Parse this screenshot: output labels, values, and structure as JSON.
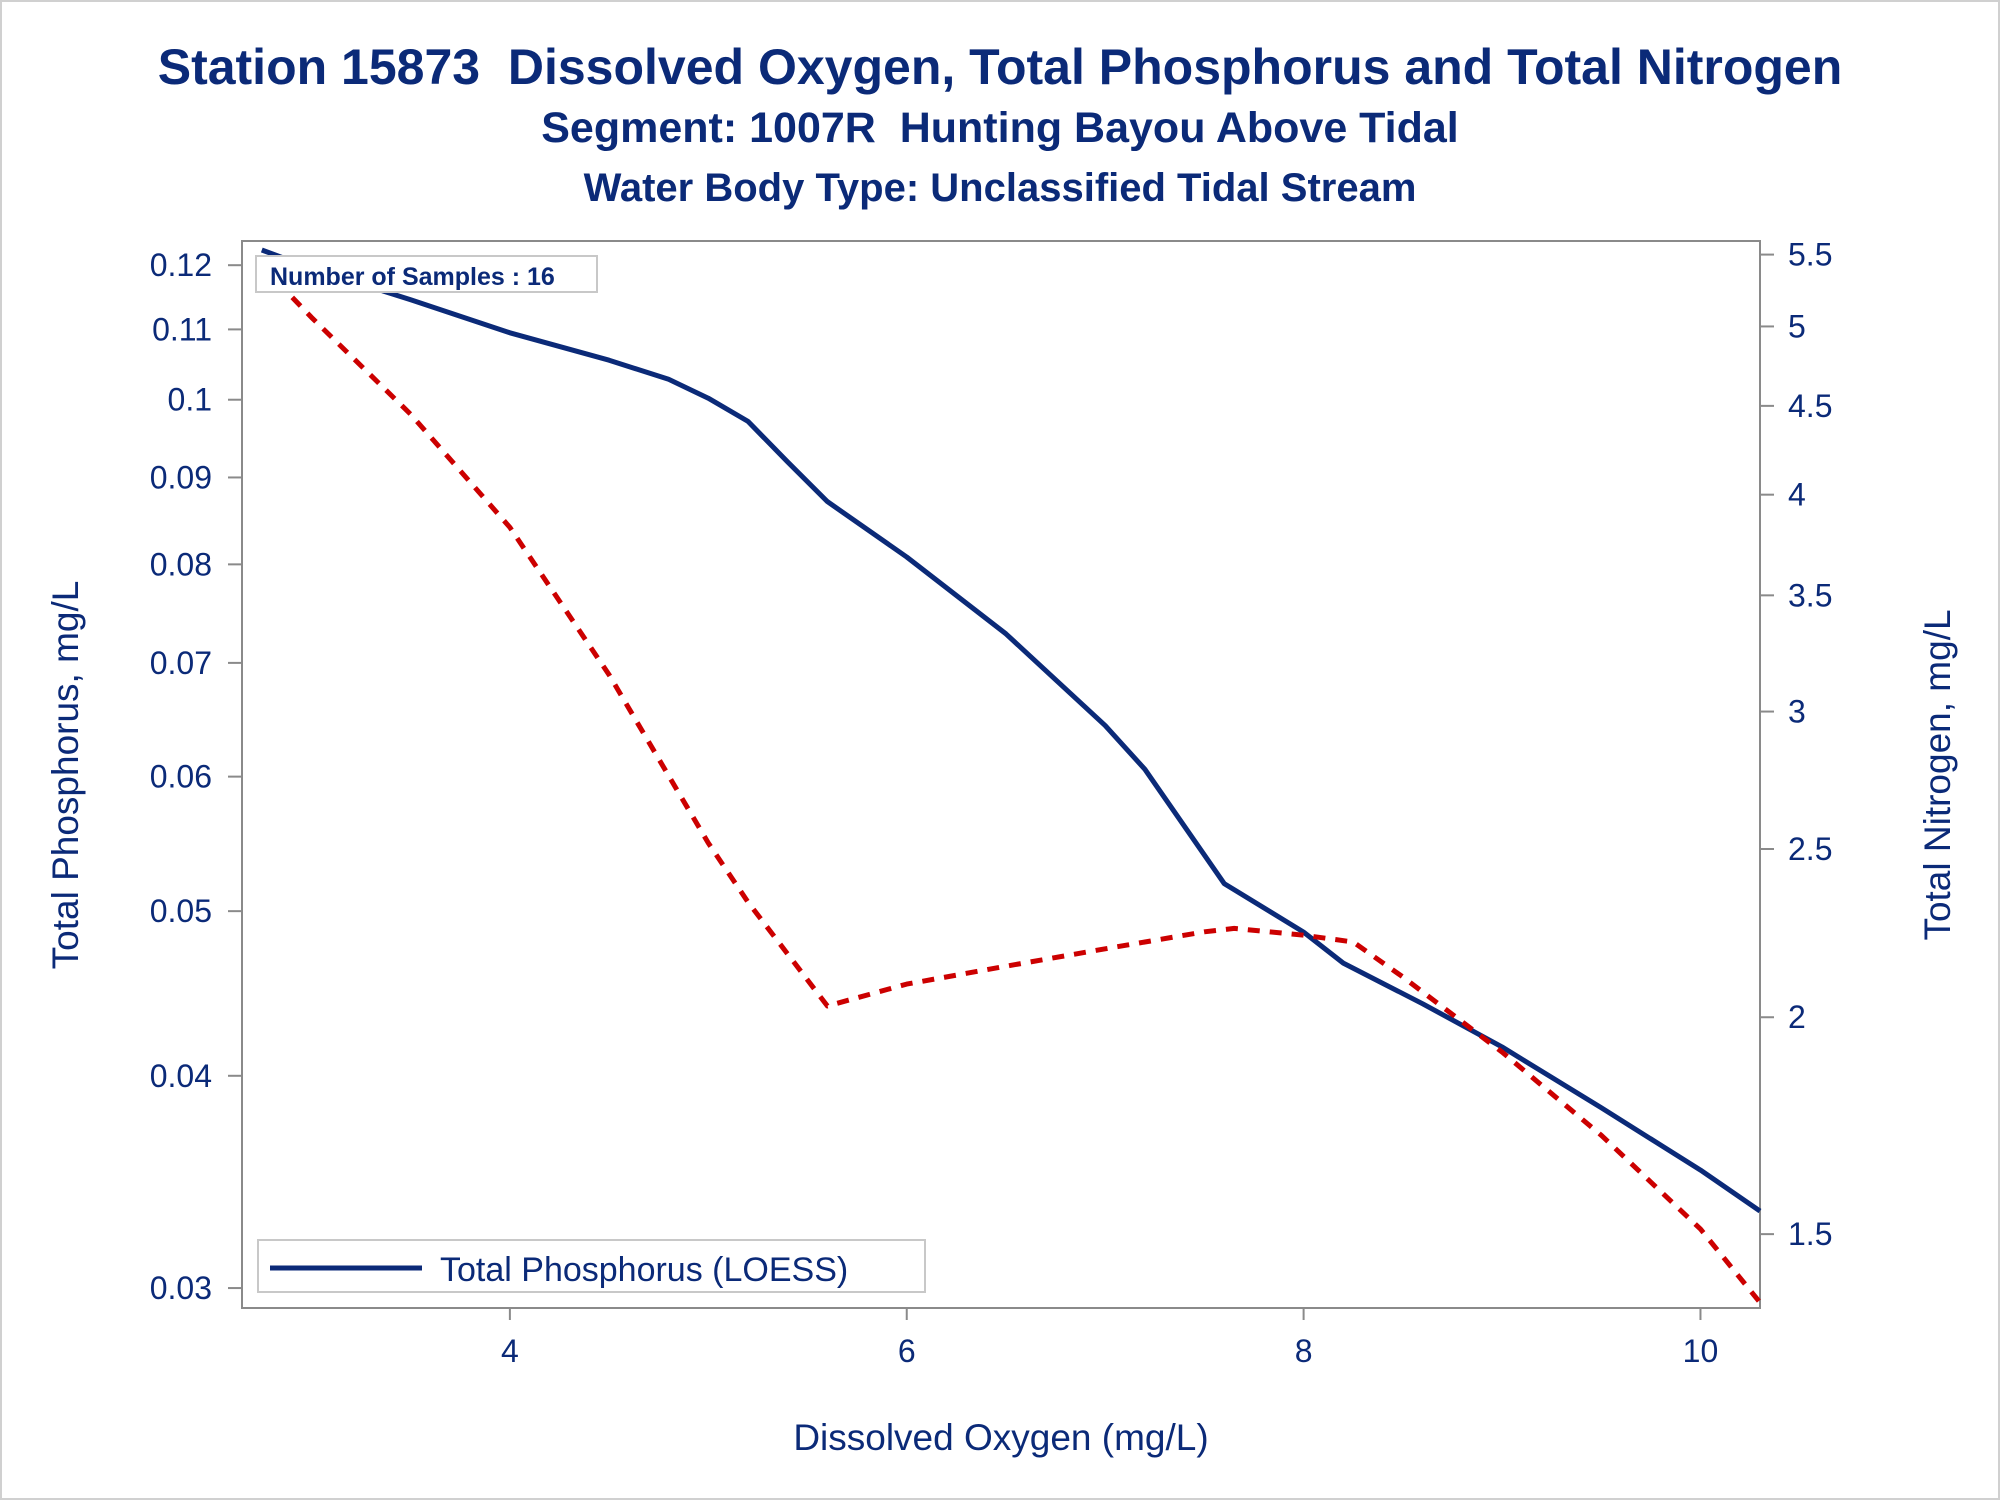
{
  "titles": {
    "line1": "Station 15873  Dissolved Oxygen, Total Phosphorus and Total Nitrogen",
    "line2": "Segment: 1007R  Hunting Bayou Above Tidal",
    "line3": "Water Body Type: Unclassified Tidal Stream"
  },
  "chart_data": {
    "type": "line",
    "xlabel": "Dissolved Oxygen (mg/L)",
    "ylabel_left": "Total Phosphorus, mg/L",
    "ylabel_right": "Total Nitrogen, mg/L",
    "xlim": [
      2.65,
      10.3
    ],
    "ylim_left": [
      0.0292,
      0.124
    ],
    "ylim_right": [
      1.36,
      5.6
    ],
    "y_scale": "log",
    "x_ticks": [
      "4",
      "6",
      "8",
      "10"
    ],
    "y_ticks_left": [
      "0.03",
      "0.04",
      "0.05",
      "0.06",
      "0.07",
      "0.08",
      "0.09",
      "0.1",
      "0.11",
      "0.12"
    ],
    "y_ticks_right": [
      "1.5",
      "2",
      "2.5",
      "3",
      "3.5",
      "4",
      "4.5",
      "5",
      "5.5"
    ],
    "annotation": "Number of Samples : 16",
    "legend": {
      "position": "bottom-left",
      "label": "Total Phosphorus (LOESS)"
    },
    "grid": false,
    "series": [
      {
        "name": "Total Phosphorus (LOESS)",
        "axis": "left",
        "style": "solid",
        "color": "#0b2a78",
        "x": [
          2.75,
          3.0,
          3.5,
          4.0,
          4.5,
          4.8,
          5.0,
          5.2,
          5.4,
          5.6,
          6.0,
          6.5,
          7.0,
          7.2,
          7.6,
          8.0,
          8.2,
          8.6,
          9.0,
          9.5,
          10.0,
          10.3
        ],
        "y": [
          0.1225,
          0.1195,
          0.1145,
          0.1095,
          0.1055,
          0.1028,
          0.1002,
          0.0971,
          0.0919,
          0.0871,
          0.0808,
          0.0728,
          0.0643,
          0.0606,
          0.0519,
          0.0486,
          0.0466,
          0.0441,
          0.0416,
          0.0383,
          0.0352,
          0.0333
        ]
      },
      {
        "axis": "right",
        "style": "dashed",
        "color": "#cc0000",
        "x": [
          2.75,
          3.0,
          3.5,
          4.0,
          4.5,
          5.0,
          5.2,
          5.6,
          6.0,
          6.5,
          7.0,
          7.5,
          7.65,
          8.0,
          8.25,
          8.5,
          9.0,
          9.5,
          10.0,
          10.3
        ],
        "y": [
          5.42,
          5.06,
          4.45,
          3.83,
          3.15,
          2.52,
          2.33,
          2.03,
          2.09,
          2.14,
          2.19,
          2.24,
          2.25,
          2.23,
          2.21,
          2.11,
          1.91,
          1.71,
          1.51,
          1.37
        ]
      }
    ]
  }
}
